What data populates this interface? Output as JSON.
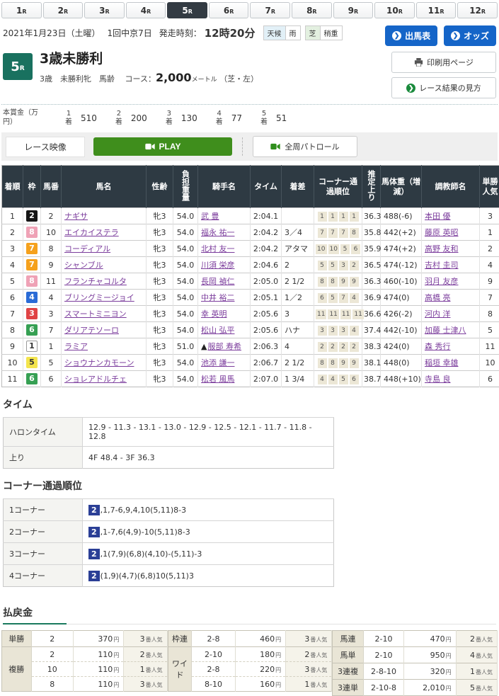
{
  "units": {
    "yen": "円",
    "ninki": "番人気",
    "rank": "着"
  },
  "tabs": [
    {
      "num": "1",
      "suffix": "R",
      "active": false
    },
    {
      "num": "2",
      "suffix": "R",
      "active": false
    },
    {
      "num": "3",
      "suffix": "R",
      "active": false
    },
    {
      "num": "4",
      "suffix": "R",
      "active": false
    },
    {
      "num": "5",
      "suffix": "R",
      "active": true
    },
    {
      "num": "6",
      "suffix": "R",
      "active": false
    },
    {
      "num": "7",
      "suffix": "R",
      "active": false
    },
    {
      "num": "8",
      "suffix": "R",
      "active": false
    },
    {
      "num": "9",
      "suffix": "R",
      "active": false
    },
    {
      "num": "10",
      "suffix": "R",
      "active": false
    },
    {
      "num": "11",
      "suffix": "R",
      "active": false
    },
    {
      "num": "12",
      "suffix": "R",
      "active": false
    }
  ],
  "header": {
    "date": "2021年1月23日（土曜）",
    "meeting": "1回中京7日",
    "start_label": "発走時刻：",
    "start_time": "12時20分",
    "weather_label": "天候",
    "weather_value": "雨",
    "surface_label": "芝",
    "surface_value": "稍重",
    "entries_button": "出馬表",
    "odds_button": "オッズ",
    "print_button": "印刷用ページ",
    "guide_button": "レース結果の見方"
  },
  "race": {
    "number": "5",
    "number_suffix": "R",
    "title": "3歳未勝利",
    "conditions": "3歳　未勝利牝　馬齢",
    "course_label": "コース：",
    "distance": "2,000",
    "distance_unit": "メートル",
    "track_note": "（芝・左）"
  },
  "prize": {
    "label": "本賞金（万円）",
    "items": [
      {
        "rank": "1",
        "value": "510"
      },
      {
        "rank": "2",
        "value": "200"
      },
      {
        "rank": "3",
        "value": "130"
      },
      {
        "rank": "4",
        "value": "77"
      },
      {
        "rank": "5",
        "value": "51"
      }
    ]
  },
  "video": {
    "label": "レース映像",
    "play": "PLAY",
    "patrol": "全周パトロール"
  },
  "results": {
    "headers": [
      "着順",
      "枠",
      "馬番",
      "馬名",
      "性齢",
      "負担重量",
      "騎手名",
      "タイム",
      "着差",
      "コーナー通過順位",
      "推定上り",
      "馬体重（増減）",
      "調教師名",
      "単勝人気"
    ],
    "rows": [
      {
        "pos": "1",
        "frame": "2",
        "num": "2",
        "horse": "ナギサ",
        "sex_age": "牝3",
        "weight": "54.0",
        "jockey": "武 豊",
        "time": "2:04.1",
        "margin": "",
        "corners": [
          "1",
          "1",
          "1",
          "1"
        ],
        "last3f": "36.3",
        "horse_weight": "488(-6)",
        "trainer": "本田 優",
        "fav": "3"
      },
      {
        "pos": "2",
        "frame": "8",
        "num": "10",
        "horse": "エイカイステラ",
        "sex_age": "牝3",
        "weight": "54.0",
        "jockey": "福永 祐一",
        "time": "2:04.2",
        "margin": "3／4",
        "corners": [
          "7",
          "7",
          "7",
          "8"
        ],
        "last3f": "35.8",
        "horse_weight": "442(+2)",
        "trainer": "藤原 英昭",
        "fav": "1"
      },
      {
        "pos": "3",
        "frame": "7",
        "num": "8",
        "horse": "コーディアル",
        "sex_age": "牝3",
        "weight": "54.0",
        "jockey": "北村 友一",
        "time": "2:04.2",
        "margin": "アタマ",
        "corners": [
          "10",
          "10",
          "5",
          "6"
        ],
        "last3f": "35.9",
        "horse_weight": "474(+2)",
        "trainer": "高野 友和",
        "fav": "2"
      },
      {
        "pos": "4",
        "frame": "7",
        "num": "9",
        "horse": "シャンブル",
        "sex_age": "牝3",
        "weight": "54.0",
        "jockey": "川須 栄彦",
        "time": "2:04.6",
        "margin": "2",
        "corners": [
          "5",
          "5",
          "3",
          "2"
        ],
        "last3f": "36.5",
        "horse_weight": "474(-12)",
        "trainer": "吉村 圭司",
        "fav": "4"
      },
      {
        "pos": "5",
        "frame": "8",
        "num": "11",
        "horse": "フランチャコルタ",
        "sex_age": "牝3",
        "weight": "54.0",
        "jockey": "長岡 禎仁",
        "time": "2:05.0",
        "margin": "2 1/2",
        "corners": [
          "8",
          "8",
          "9",
          "9"
        ],
        "last3f": "36.3",
        "horse_weight": "460(-10)",
        "trainer": "羽月 友彦",
        "fav": "9"
      },
      {
        "pos": "6",
        "frame": "4",
        "num": "4",
        "horse": "ブリングミージョイ",
        "sex_age": "牝3",
        "weight": "54.0",
        "jockey": "中井 裕二",
        "time": "2:05.1",
        "margin": "1／2",
        "corners": [
          "6",
          "5",
          "7",
          "4"
        ],
        "last3f": "36.9",
        "horse_weight": "474(0)",
        "trainer": "高橋 亮",
        "fav": "7"
      },
      {
        "pos": "7",
        "frame": "3",
        "num": "3",
        "horse": "スマートミニヨン",
        "sex_age": "牝3",
        "weight": "54.0",
        "jockey": "幸 英明",
        "time": "2:05.6",
        "margin": "3",
        "corners": [
          "11",
          "11",
          "11",
          "11"
        ],
        "last3f": "36.6",
        "horse_weight": "426(-2)",
        "trainer": "河内 洋",
        "fav": "8"
      },
      {
        "pos": "8",
        "frame": "6",
        "num": "7",
        "horse": "ダリアテソーロ",
        "sex_age": "牝3",
        "weight": "54.0",
        "jockey": "松山 弘平",
        "time": "2:05.6",
        "margin": "ハナ",
        "corners": [
          "3",
          "3",
          "3",
          "4"
        ],
        "last3f": "37.4",
        "horse_weight": "442(-10)",
        "trainer": "加藤 士津八",
        "fav": "5"
      },
      {
        "pos": "9",
        "frame": "1",
        "num": "1",
        "horse": "ラミア",
        "sex_age": "牝3",
        "weight": "51.0",
        "jockey_prefix": "▲",
        "jockey": "服部 寿希",
        "time": "2:06.3",
        "margin": "4",
        "corners": [
          "2",
          "2",
          "2",
          "2"
        ],
        "last3f": "38.3",
        "horse_weight": "424(0)",
        "trainer": "森 秀行",
        "fav": "11"
      },
      {
        "pos": "10",
        "frame": "5",
        "num": "5",
        "horse": "ショウナンカモーン",
        "sex_age": "牝3",
        "weight": "54.0",
        "jockey": "池添 謙一",
        "time": "2:06.7",
        "margin": "2 1/2",
        "corners": [
          "8",
          "8",
          "9",
          "9"
        ],
        "last3f": "38.1",
        "horse_weight": "448(0)",
        "trainer": "稲垣 幸雄",
        "fav": "10"
      },
      {
        "pos": "11",
        "frame": "6",
        "num": "6",
        "horse": "ショレアドルチェ",
        "sex_age": "牝3",
        "weight": "54.0",
        "jockey": "松若 風馬",
        "time": "2:07.0",
        "margin": "1 3/4",
        "corners": [
          "4",
          "4",
          "5",
          "6"
        ],
        "last3f": "38.7",
        "horse_weight": "448(+10)",
        "trainer": "寺島 良",
        "fav": "6"
      }
    ]
  },
  "time_section": {
    "title": "タイム",
    "rows": [
      {
        "label": "ハロンタイム",
        "value": "12.9 - 11.3 - 13.1 - 13.0 - 12.9 - 12.5 - 12.1 - 11.7 - 11.8 - 12.8"
      },
      {
        "label": "上り",
        "value": "4F 48.4 - 3F 36.3"
      }
    ]
  },
  "corner_section": {
    "title": "コーナー通過順位",
    "rows": [
      {
        "label": "1コーナー",
        "leader": "2",
        "order": ",1,7-6,9,4,10(5,11)8-3"
      },
      {
        "label": "2コーナー",
        "leader": "2",
        "order": ",1-7,6(4,9)-10(5,11)8-3"
      },
      {
        "label": "3コーナー",
        "leader": "2",
        "order": ",1(7,9)(6,8)(4,10)-(5,11)-3"
      },
      {
        "label": "4コーナー",
        "leader": "2",
        "order": "(1,9)(4,7)(6,8)10(5,11)3"
      }
    ]
  },
  "payout_section": {
    "title": "払戻金",
    "groups": [
      [
        {
          "label": "単勝",
          "rows": [
            {
              "combo": "2",
              "payout": "370",
              "fav": "3"
            }
          ]
        },
        {
          "label": "複勝",
          "rows": [
            {
              "combo": "2",
              "payout": "110",
              "fav": "2"
            },
            {
              "combo": "10",
              "payout": "110",
              "fav": "1"
            },
            {
              "combo": "8",
              "payout": "110",
              "fav": "3"
            }
          ]
        }
      ],
      [
        {
          "label": "枠連",
          "rows": [
            {
              "combo": "2-8",
              "payout": "460",
              "fav": "3"
            }
          ]
        },
        {
          "label": "ワイド",
          "rows": [
            {
              "combo": "2-10",
              "payout": "180",
              "fav": "2"
            },
            {
              "combo": "2-8",
              "payout": "220",
              "fav": "3"
            },
            {
              "combo": "8-10",
              "payout": "160",
              "fav": "1"
            }
          ]
        }
      ],
      [
        {
          "label": "馬連",
          "rows": [
            {
              "combo": "2-10",
              "payout": "470",
              "fav": "2"
            }
          ]
        },
        {
          "label": "馬単",
          "rows": [
            {
              "combo": "2-10",
              "payout": "950",
              "fav": "4"
            }
          ]
        },
        {
          "label": "3連複",
          "rows": [
            {
              "combo": "2-8-10",
              "payout": "320",
              "fav": "1"
            }
          ]
        },
        {
          "label": "3連単",
          "rows": [
            {
              "combo": "2-10-8",
              "payout": "2,010",
              "fav": "5"
            }
          ]
        }
      ]
    ]
  },
  "colors": {
    "accent_green": "#1a7a5e",
    "race_badge_green": "#19715f",
    "button_blue": "#1565c8",
    "table_header_dark": "#2e3a43",
    "play_green": "#3f8e1c",
    "link_purple": "#7b3c9c"
  }
}
